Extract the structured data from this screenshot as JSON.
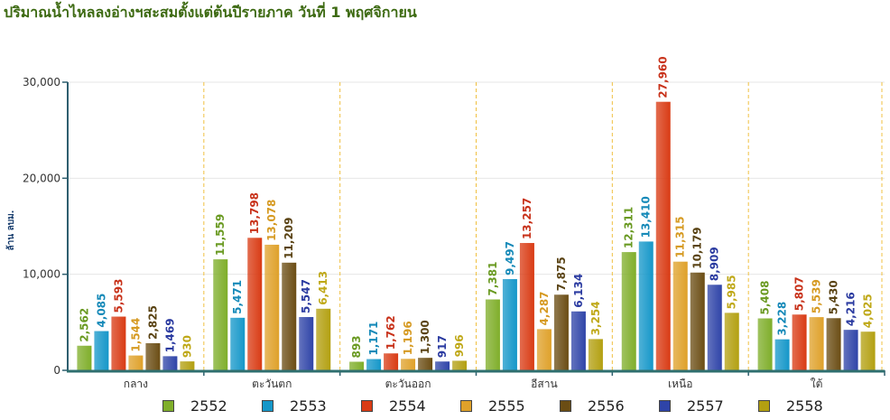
{
  "chart_data": {
    "type": "bar",
    "title": "ปริมาณน้ำไหลลงอ่างฯสะสมตั้งแต่ต้นปีรายภาค วันที่ 1 พฤศจิกายน",
    "ylabel": "ล้าน ลบม.",
    "xlabel": "",
    "ylim": [
      0,
      30000
    ],
    "yticks": [
      "0",
      "10,000",
      "20,000",
      "30,000"
    ],
    "ytick_values": [
      0,
      10000,
      20000,
      30000
    ],
    "categories": [
      "กลาง",
      "ตะวันตก",
      "ตะวันออก",
      "อีสาน",
      "เหนือ",
      "ใต้"
    ],
    "legend_position": "bottom",
    "grid": true,
    "series": [
      {
        "name": "2552",
        "color": "#7fae2a",
        "label_color": "#6a9a22",
        "values": [
          2562,
          11559,
          893,
          7381,
          12311,
          5408
        ],
        "labels": [
          "2,562",
          "11,559",
          "893",
          "7,381",
          "12,311",
          "5,408"
        ]
      },
      {
        "name": "2553",
        "color": "#1597c9",
        "label_color": "#1589b8",
        "values": [
          4085,
          5471,
          1171,
          9497,
          13410,
          3228
        ],
        "labels": [
          "4,085",
          "5,471",
          "1,171",
          "9,497",
          "13,410",
          "3,228"
        ]
      },
      {
        "name": "2554",
        "color": "#d93b14",
        "label_color": "#c8321a",
        "values": [
          5593,
          13798,
          1762,
          13257,
          27960,
          5807
        ],
        "labels": [
          "5,593",
          "13,798",
          "1,762",
          "13,257",
          "27,960",
          "5,807"
        ]
      },
      {
        "name": "2555",
        "color": "#dfa12a",
        "label_color": "#d69a22",
        "values": [
          1544,
          13078,
          1196,
          4287,
          11315,
          5539
        ],
        "labels": [
          "1,544",
          "13,078",
          "1,196",
          "4,287",
          "11,315",
          "5,539"
        ]
      },
      {
        "name": "2556",
        "color": "#6b4d14",
        "label_color": "#5a4314",
        "values": [
          2825,
          11209,
          1300,
          7875,
          10179,
          5430
        ],
        "labels": [
          "2,825",
          "11,209",
          "1,300",
          "7,875",
          "10,179",
          "5,430"
        ]
      },
      {
        "name": "2557",
        "color": "#2f44a8",
        "label_color": "#2a3aa0",
        "values": [
          1469,
          5547,
          917,
          6134,
          8909,
          4216
        ],
        "labels": [
          "1,469",
          "5,547",
          "917",
          "6,134",
          "8,909",
          "4,216"
        ]
      },
      {
        "name": "2558",
        "color": "#b3a011",
        "label_color": "#bfa818",
        "values": [
          930,
          6413,
          996,
          3254,
          5985,
          4025
        ],
        "labels": [
          "930",
          "6,413",
          "996",
          "3,254",
          "5,985",
          "4,025"
        ]
      }
    ]
  }
}
